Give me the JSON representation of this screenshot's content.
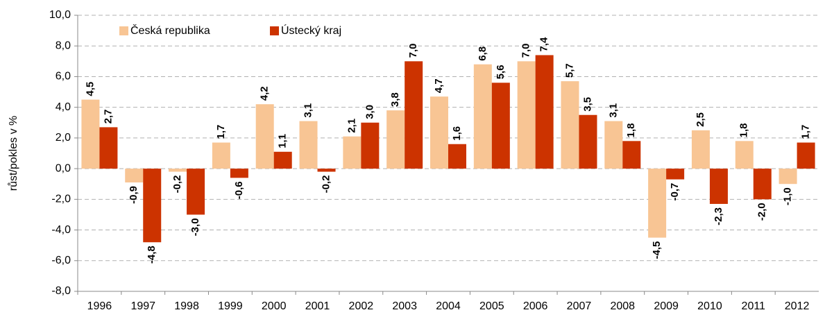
{
  "chart_data": {
    "type": "bar",
    "y_label": "růst/pokles v %",
    "categories": [
      "1996",
      "1997",
      "1998",
      "1999",
      "2000",
      "2001",
      "2002",
      "2003",
      "2004",
      "2005",
      "2006",
      "2007",
      "2008",
      "2009",
      "2010",
      "2011",
      "2012"
    ],
    "series": [
      {
        "name": "Česká republika",
        "color": "#f8c594",
        "label_color": "#f0852d",
        "values": [
          4.5,
          -0.9,
          -0.2,
          1.7,
          4.2,
          3.1,
          2.1,
          3.8,
          4.7,
          6.8,
          7.0,
          5.7,
          3.1,
          -4.5,
          2.5,
          1.8,
          -1.0
        ],
        "value_labels": [
          "4,5",
          "-0,9",
          "-0,2",
          "1,7",
          "4,2",
          "3,1",
          "2,1",
          "3,8",
          "4,7",
          "6,8",
          "7,0",
          "5,7",
          "3,1",
          "-4,5",
          "2,5",
          "1,8",
          "-1,0"
        ]
      },
      {
        "name": "Ústecký kraj",
        "color": "#cc3300",
        "label_color": "#cc3300",
        "values": [
          2.7,
          -4.8,
          -3.0,
          -0.6,
          1.1,
          -0.2,
          3.0,
          7.0,
          1.6,
          5.6,
          7.4,
          3.5,
          1.8,
          -0.7,
          -2.3,
          -2.0,
          1.7
        ],
        "value_labels": [
          "2,7",
          "-4,8",
          "-3,0",
          "-0,6",
          "1,1",
          "-0,2",
          "3,0",
          "7,0",
          "1,6",
          "5,6",
          "7,4",
          "3,5",
          "1,8",
          "-0,7",
          "-2,3",
          "-2,0",
          "1,7"
        ]
      }
    ],
    "ylim": [
      -8,
      10
    ],
    "yticks": [
      {
        "value": -8,
        "label": "-8,0"
      },
      {
        "value": -6,
        "label": "-6,0"
      },
      {
        "value": -4,
        "label": "-4,0"
      },
      {
        "value": -2,
        "label": "-2,0"
      },
      {
        "value": 0,
        "label": "0,0"
      },
      {
        "value": 2,
        "label": "2,0"
      },
      {
        "value": 4,
        "label": "4,0"
      },
      {
        "value": 6,
        "label": "6,0"
      },
      {
        "value": 8,
        "label": "8,0"
      },
      {
        "value": 10,
        "label": "10,0"
      }
    ],
    "grid": true,
    "legend": "top-left"
  }
}
